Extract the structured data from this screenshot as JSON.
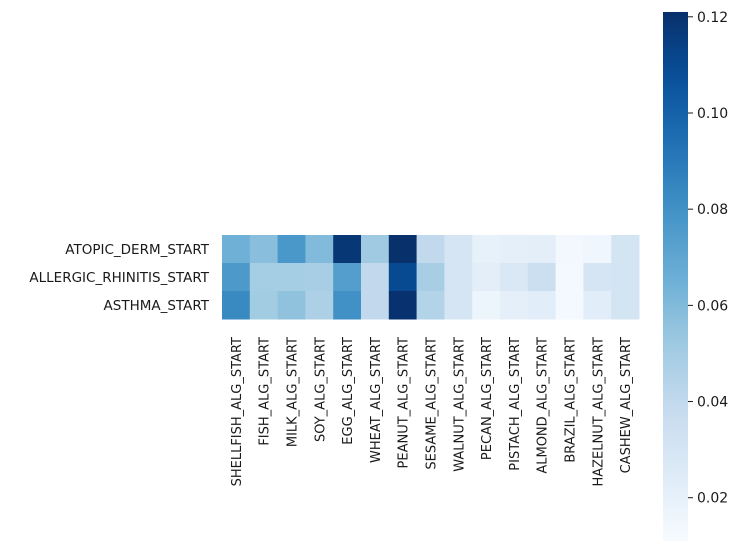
{
  "chart_data": {
    "type": "heatmap",
    "title": "",
    "xlabel": "",
    "ylabel": "",
    "x_categories": [
      "SHELLFISH_ALG_START",
      "FISH_ALG_START",
      "MILK_ALG_START",
      "SOY_ALG_START",
      "EGG_ALG_START",
      "WHEAT_ALG_START",
      "PEANUT_ALG_START",
      "SESAME_ALG_START",
      "WALNUT_ALG_START",
      "PECAN_ALG_START",
      "PISTACH_ALG_START",
      "ALMOND_ALG_START",
      "BRAZIL_ALG_START",
      "HAZELNUT_ALG_START",
      "CASHEW_ALG_START"
    ],
    "y_categories": [
      "ATOPIC_DERM_START",
      "ALLERGIC_RHINITIS_START",
      "ASTHMA_START"
    ],
    "values": [
      [
        0.065,
        0.058,
        0.077,
        0.06,
        0.118,
        0.052,
        0.121,
        0.04,
        0.03,
        0.02,
        0.021,
        0.022,
        0.014,
        0.015,
        0.031
      ],
      [
        0.076,
        0.05,
        0.05,
        0.049,
        0.074,
        0.04,
        0.11,
        0.049,
        0.03,
        0.022,
        0.027,
        0.035,
        0.013,
        0.03,
        0.031
      ],
      [
        0.083,
        0.051,
        0.056,
        0.047,
        0.08,
        0.04,
        0.12,
        0.045,
        0.03,
        0.017,
        0.021,
        0.023,
        0.013,
        0.023,
        0.031
      ]
    ],
    "colorbar": {
      "colormap": "Blues",
      "vmin": 0.011,
      "vmax": 0.121,
      "ticks": [
        0.02,
        0.04,
        0.06,
        0.08,
        0.1,
        0.12
      ],
      "tick_labels": [
        "0.02",
        "0.04",
        "0.06",
        "0.08",
        "0.10",
        "0.12"
      ]
    },
    "grid": false,
    "legend": "colorbar-right"
  }
}
